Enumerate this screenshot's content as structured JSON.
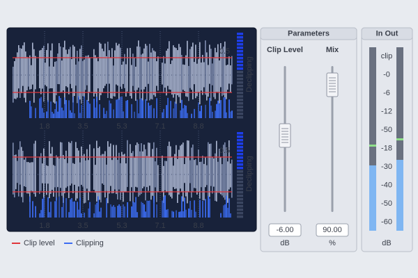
{
  "waveform_panel": {
    "tracks": [
      {
        "time_labels": [
          "1.8",
          "3.5",
          "5.3",
          "7.1",
          "8.8"
        ],
        "scale_label": "0.5",
        "side_label": "Declipping"
      },
      {
        "time_labels": [
          "1.8",
          "3.5",
          "5.3",
          "7.1",
          "8.8"
        ],
        "scale_label": "0.5",
        "side_label": "Declipping"
      }
    ]
  },
  "legend": [
    {
      "label": "Clip level",
      "color": "#e0353a"
    },
    {
      "label": "Clipping",
      "color": "#3b6cf2"
    }
  ],
  "parameters": {
    "title": "Parameters",
    "controls": [
      {
        "label": "Clip Level",
        "value": "-6.00",
        "unit": "dB"
      },
      {
        "label": "Mix",
        "value": "90.00",
        "unit": "%"
      }
    ]
  },
  "meter": {
    "title": "In Out",
    "scale": [
      "clip",
      "-0",
      "-6",
      "-12",
      "-50",
      "-18",
      "-30",
      "-40",
      "-50",
      "-60"
    ],
    "unit": "dB"
  }
}
